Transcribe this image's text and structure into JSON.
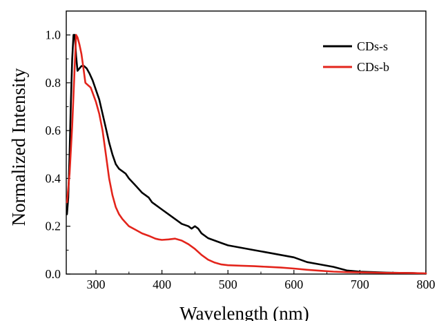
{
  "chart_data": {
    "type": "line",
    "xlabel": "Wavelength (nm)",
    "ylabel": "Normalized Intensity",
    "xlim": [
      255,
      800
    ],
    "ylim": [
      0.0,
      1.1
    ],
    "x_ticks": [
      "300",
      "400",
      "500",
      "600",
      "700",
      "800"
    ],
    "y_ticks": [
      "0.0",
      "0.2",
      "0.4",
      "0.6",
      "0.8",
      "1.0"
    ],
    "grid": false,
    "legend_position": "top-right",
    "series": [
      {
        "name": "CDs-s",
        "color": "#000000",
        "x": [
          256,
          258,
          260,
          262,
          264,
          266,
          268,
          270,
          272,
          275,
          278,
          282,
          286,
          290,
          295,
          300,
          305,
          310,
          315,
          320,
          325,
          330,
          335,
          340,
          345,
          350,
          360,
          370,
          380,
          385,
          390,
          400,
          410,
          420,
          430,
          440,
          445,
          450,
          455,
          460,
          470,
          480,
          490,
          500,
          520,
          540,
          560,
          580,
          600,
          620,
          640,
          660,
          680,
          700,
          720,
          740,
          760,
          780,
          800
        ],
        "y": [
          0.25,
          0.32,
          0.5,
          0.72,
          0.9,
          1.0,
          1.0,
          0.91,
          0.85,
          0.86,
          0.87,
          0.87,
          0.86,
          0.84,
          0.81,
          0.77,
          0.73,
          0.67,
          0.61,
          0.55,
          0.5,
          0.46,
          0.44,
          0.43,
          0.42,
          0.4,
          0.37,
          0.34,
          0.32,
          0.3,
          0.29,
          0.27,
          0.25,
          0.23,
          0.21,
          0.2,
          0.19,
          0.2,
          0.19,
          0.17,
          0.15,
          0.14,
          0.13,
          0.12,
          0.11,
          0.1,
          0.09,
          0.08,
          0.07,
          0.05,
          0.04,
          0.03,
          0.015,
          0.01,
          0.008,
          0.006,
          0.005,
          0.004,
          0.002
        ]
      },
      {
        "name": "CDs-b",
        "color": "#e3241b",
        "x": [
          256,
          260,
          264,
          268,
          270,
          272,
          275,
          278,
          281,
          284,
          288,
          292,
          296,
          300,
          305,
          310,
          315,
          320,
          325,
          330,
          335,
          340,
          345,
          350,
          360,
          370,
          380,
          390,
          395,
          400,
          410,
          420,
          430,
          440,
          450,
          460,
          470,
          480,
          490,
          500,
          520,
          540,
          560,
          580,
          600,
          620,
          640,
          660,
          680,
          700,
          720,
          740,
          760,
          780,
          800
        ],
        "y": [
          0.3,
          0.42,
          0.62,
          0.88,
          1.0,
          0.99,
          0.96,
          0.92,
          0.86,
          0.8,
          0.79,
          0.78,
          0.75,
          0.72,
          0.67,
          0.6,
          0.5,
          0.4,
          0.33,
          0.28,
          0.25,
          0.23,
          0.215,
          0.2,
          0.185,
          0.17,
          0.16,
          0.148,
          0.145,
          0.143,
          0.145,
          0.148,
          0.14,
          0.125,
          0.105,
          0.08,
          0.06,
          0.048,
          0.04,
          0.037,
          0.035,
          0.033,
          0.03,
          0.027,
          0.023,
          0.018,
          0.014,
          0.01,
          0.008,
          0.007,
          0.006,
          0.005,
          0.005,
          0.004,
          0.003
        ]
      }
    ]
  }
}
